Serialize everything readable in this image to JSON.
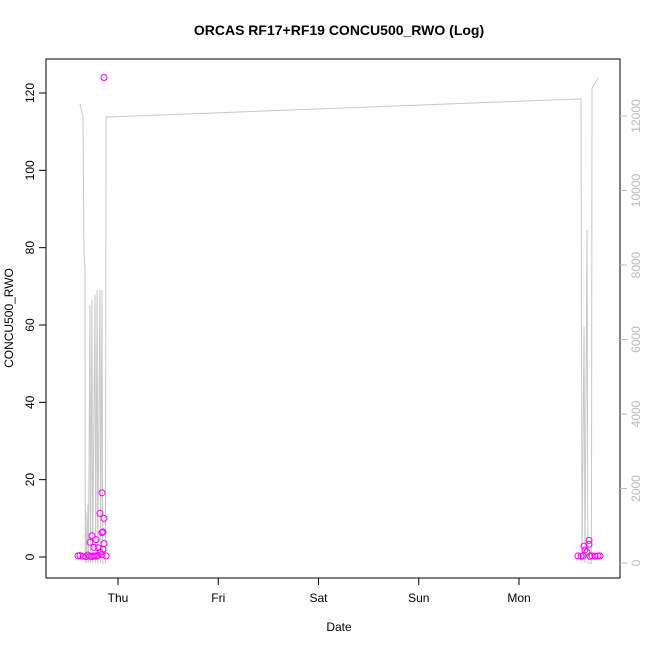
{
  "chart_data": {
    "type": "scatter",
    "title": "ORCAS RF17+RF19 CONCU500_RWO (Log)",
    "xlabel": "Date",
    "ylabel": "CONCU500_RWO",
    "ylim": [
      0,
      120
    ],
    "yticks": [
      0,
      20,
      40,
      60,
      80,
      100,
      120
    ],
    "y2ticks": [
      0,
      2000,
      4000,
      6000,
      8000,
      10000,
      12000
    ],
    "xticks": [
      {
        "label": "Thu",
        "t": "2016-08-18T00:00"
      },
      {
        "label": "Fri",
        "t": "2016-08-19T00:00"
      },
      {
        "label": "Sat",
        "t": "2016-08-20T00:00"
      },
      {
        "label": "Sun",
        "t": "2016-08-21T00:00"
      },
      {
        "label": "Mon",
        "t": "2016-08-22T00:00"
      }
    ],
    "point_color": "#FF00FF",
    "line_color": "#C8C8C8",
    "points": [
      [
        "2016-08-17T14:25",
        0.3
      ],
      [
        "2016-08-17T14:54",
        0.4
      ],
      [
        "2016-08-17T15:37",
        0.2
      ],
      [
        "2016-08-17T16:20",
        0.1
      ],
      [
        "2016-08-17T16:49",
        0.5
      ],
      [
        "2016-08-17T17:18",
        0.2
      ],
      [
        "2016-08-17T17:18",
        3.8
      ],
      [
        "2016-08-17T17:46",
        5.5
      ],
      [
        "2016-08-17T17:46",
        0.1
      ],
      [
        "2016-08-17T18:15",
        0.3
      ],
      [
        "2016-08-17T18:15",
        2.5
      ],
      [
        "2016-08-17T18:44",
        4.5
      ],
      [
        "2016-08-17T18:44",
        0.2
      ],
      [
        "2016-08-17T19:13",
        2.4
      ],
      [
        "2016-08-17T19:13",
        0.4
      ],
      [
        "2016-08-17T19:41",
        11.3
      ],
      [
        "2016-08-17T19:41",
        1.2
      ],
      [
        "2016-08-17T20:10",
        16.6
      ],
      [
        "2016-08-17T20:10",
        6.3
      ],
      [
        "2016-08-17T20:10",
        0.6
      ],
      [
        "2016-08-17T20:25",
        2.0
      ],
      [
        "2016-08-17T20:25",
        6.5
      ],
      [
        "2016-08-17T20:39",
        124
      ],
      [
        "2016-08-17T20:39",
        10
      ],
      [
        "2016-08-17T20:39",
        3.5
      ],
      [
        "2016-08-17T21:08",
        0.3
      ],
      [
        "2016-08-22T14:07",
        0.3
      ],
      [
        "2016-08-22T14:51",
        0.2
      ],
      [
        "2016-08-22T15:19",
        0.3
      ],
      [
        "2016-08-22T15:34",
        2.8
      ],
      [
        "2016-08-22T15:48",
        1.8
      ],
      [
        "2016-08-22T16:17",
        1.3
      ],
      [
        "2016-08-22T16:46",
        4.3
      ],
      [
        "2016-08-22T16:46",
        3.3
      ],
      [
        "2016-08-22T17:00",
        0.2
      ],
      [
        "2016-08-22T17:29",
        0.3
      ],
      [
        "2016-08-22T18:12",
        0.2
      ],
      [
        "2016-08-22T18:55",
        0.3
      ],
      [
        "2016-08-22T19:24",
        0.3
      ]
    ],
    "line": [
      [
        "2016-08-17T14:54",
        12320
      ],
      [
        "2016-08-17T15:37",
        11970
      ],
      [
        "2016-08-17T15:51",
        8400
      ],
      [
        "2016-08-17T16:06",
        7870
      ],
      [
        "2016-08-17T16:10",
        0
      ],
      [
        "2016-08-17T16:20",
        1400
      ],
      [
        "2016-08-17T16:30",
        0
      ],
      [
        "2016-08-17T16:49",
        1560
      ],
      [
        "2016-08-17T16:55",
        0
      ],
      [
        "2016-08-17T17:18",
        6930
      ],
      [
        "2016-08-17T17:25",
        0
      ],
      [
        "2016-08-17T17:46",
        7060
      ],
      [
        "2016-08-17T17:55",
        0
      ],
      [
        "2016-08-17T18:30",
        7200
      ],
      [
        "2016-08-17T18:38",
        0
      ],
      [
        "2016-08-17T19:00",
        7330
      ],
      [
        "2016-08-17T19:08",
        0
      ],
      [
        "2016-08-17T19:41",
        7330
      ],
      [
        "2016-08-17T19:50",
        0
      ],
      [
        "2016-08-17T20:10",
        7330
      ],
      [
        "2016-08-17T20:20",
        0
      ],
      [
        "2016-08-17T21:00",
        0
      ],
      [
        "2016-08-17T21:08",
        11970
      ],
      [
        "2016-08-22T14:51",
        12460
      ],
      [
        "2016-08-22T15:05",
        0
      ],
      [
        "2016-08-22T15:34",
        6335
      ],
      [
        "2016-08-22T15:48",
        0
      ],
      [
        "2016-08-22T16:17",
        8940
      ],
      [
        "2016-08-22T16:30",
        0
      ],
      [
        "2016-08-22T17:20",
        0
      ],
      [
        "2016-08-22T17:29",
        12750
      ],
      [
        "2016-08-22T18:55",
        13020
      ]
    ]
  }
}
